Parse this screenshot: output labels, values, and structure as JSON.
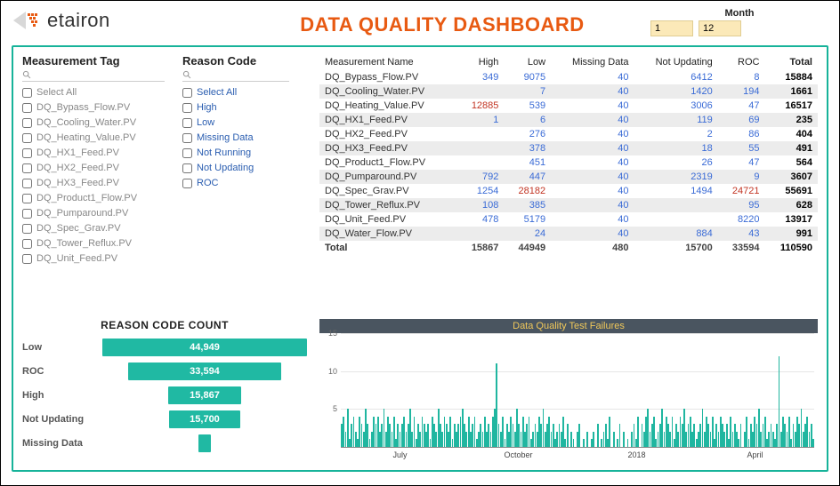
{
  "brand": {
    "name": "etairon"
  },
  "title": "DATA QUALITY DASHBOARD",
  "month": {
    "label": "Month",
    "from": "1",
    "to": "12"
  },
  "colors": {
    "accent": "#e85a12",
    "teal": "#20b9a3",
    "panel_border": "#17b39a",
    "chart_title_bg": "#4a5560",
    "chart_title_fg": "#f0c85a",
    "link": "#2a5db0",
    "blue": "#3a6bd6",
    "red": "#c23422",
    "month_bg": "#fbe9b8"
  },
  "filters": {
    "tag": {
      "heading": "Measurement Tag",
      "items": [
        "Select All",
        "DQ_Bypass_Flow.PV",
        "DQ_Cooling_Water.PV",
        "DQ_Heating_Value.PV",
        "DQ_HX1_Feed.PV",
        "DQ_HX2_Feed.PV",
        "DQ_HX3_Feed.PV",
        "DQ_Product1_Flow.PV",
        "DQ_Pumparound.PV",
        "DQ_Spec_Grav.PV",
        "DQ_Tower_Reflux.PV",
        "DQ_Unit_Feed.PV"
      ]
    },
    "reason": {
      "heading": "Reason Code",
      "items": [
        "Select All",
        "High",
        "Low",
        "Missing Data",
        "Not Running",
        "Not Updating",
        "ROC"
      ]
    }
  },
  "table": {
    "columns": [
      "Measurement Name",
      "High",
      "Low",
      "Missing Data",
      "Not Updating",
      "ROC",
      "Total"
    ],
    "rows": [
      {
        "name": "DQ_Bypass_Flow.PV",
        "high": "349",
        "low": "9075",
        "missing": "40",
        "nu": "6412",
        "roc": "8",
        "total": "15884",
        "cc": [
          "b",
          "b",
          "b",
          "b",
          "b"
        ]
      },
      {
        "name": "DQ_Cooling_Water.PV",
        "high": "",
        "low": "7",
        "missing": "40",
        "nu": "1420",
        "roc": "194",
        "total": "1661",
        "cc": [
          "",
          "b",
          "b",
          "b",
          "b"
        ]
      },
      {
        "name": "DQ_Heating_Value.PV",
        "high": "12885",
        "low": "539",
        "missing": "40",
        "nu": "3006",
        "roc": "47",
        "total": "16517",
        "cc": [
          "r",
          "b",
          "b",
          "b",
          "b"
        ]
      },
      {
        "name": "DQ_HX1_Feed.PV",
        "high": "1",
        "low": "6",
        "missing": "40",
        "nu": "119",
        "roc": "69",
        "total": "235",
        "cc": [
          "b",
          "b",
          "b",
          "b",
          "b"
        ]
      },
      {
        "name": "DQ_HX2_Feed.PV",
        "high": "",
        "low": "276",
        "missing": "40",
        "nu": "2",
        "roc": "86",
        "total": "404",
        "cc": [
          "",
          "b",
          "b",
          "b",
          "b"
        ]
      },
      {
        "name": "DQ_HX3_Feed.PV",
        "high": "",
        "low": "378",
        "missing": "40",
        "nu": "18",
        "roc": "55",
        "total": "491",
        "cc": [
          "",
          "b",
          "b",
          "b",
          "b"
        ]
      },
      {
        "name": "DQ_Product1_Flow.PV",
        "high": "",
        "low": "451",
        "missing": "40",
        "nu": "26",
        "roc": "47",
        "total": "564",
        "cc": [
          "",
          "b",
          "b",
          "b",
          "b"
        ]
      },
      {
        "name": "DQ_Pumparound.PV",
        "high": "792",
        "low": "447",
        "missing": "40",
        "nu": "2319",
        "roc": "9",
        "total": "3607",
        "cc": [
          "b",
          "b",
          "b",
          "b",
          "b"
        ]
      },
      {
        "name": "DQ_Spec_Grav.PV",
        "high": "1254",
        "low": "28182",
        "missing": "40",
        "nu": "1494",
        "roc": "24721",
        "total": "55691",
        "cc": [
          "b",
          "r",
          "b",
          "b",
          "r"
        ]
      },
      {
        "name": "DQ_Tower_Reflux.PV",
        "high": "108",
        "low": "385",
        "missing": "40",
        "nu": "",
        "roc": "95",
        "total": "628",
        "cc": [
          "b",
          "b",
          "b",
          "",
          "b"
        ]
      },
      {
        "name": "DQ_Unit_Feed.PV",
        "high": "478",
        "low": "5179",
        "missing": "40",
        "nu": "",
        "roc": "8220",
        "total": "13917",
        "cc": [
          "b",
          "b",
          "b",
          "",
          "b"
        ]
      },
      {
        "name": "DQ_Water_Flow.PV",
        "high": "",
        "low": "24",
        "missing": "40",
        "nu": "884",
        "roc": "43",
        "total": "991",
        "cc": [
          "",
          "b",
          "b",
          "b",
          "b"
        ]
      },
      {
        "name": "Total",
        "high": "15867",
        "low": "44949",
        "missing": "480",
        "nu": "15700",
        "roc": "33594",
        "total": "110590",
        "cc": [
          "p",
          "p",
          "p",
          "p",
          "p"
        ]
      }
    ]
  },
  "funnel": {
    "title": "REASON CODE COUNT",
    "max": 44949,
    "rows": [
      {
        "label": "Low",
        "value": 44949,
        "text": "44,949"
      },
      {
        "label": "ROC",
        "value": 33594,
        "text": "33,594"
      },
      {
        "label": "High",
        "value": 15867,
        "text": "15,867"
      },
      {
        "label": "Not Updating",
        "value": 15700,
        "text": "15,700"
      },
      {
        "label": "Missing Data",
        "value": 480,
        "text": ""
      }
    ]
  },
  "timeseries": {
    "title": "Data Quality Test Failures",
    "ylim": [
      0,
      15
    ],
    "yticks": [
      5,
      10,
      15
    ],
    "xticks": [
      "July",
      "October",
      "2018",
      "April"
    ],
    "values": [
      3,
      4,
      2,
      5,
      1,
      3,
      4,
      2,
      1,
      4,
      3,
      2,
      5,
      3,
      1,
      2,
      4,
      3,
      4,
      2,
      3,
      5,
      2,
      4,
      3,
      2,
      4,
      1,
      3,
      2,
      3,
      4,
      2,
      3,
      5,
      2,
      4,
      1,
      3,
      2,
      4,
      3,
      2,
      3,
      1,
      4,
      3,
      2,
      5,
      3,
      2,
      4,
      3,
      2,
      4,
      1,
      3,
      2,
      3,
      4,
      5,
      3,
      2,
      4,
      2,
      3,
      4,
      1,
      2,
      3,
      2,
      4,
      2,
      3,
      2,
      4,
      5,
      11,
      3,
      2,
      4,
      1,
      3,
      2,
      4,
      3,
      2,
      5,
      3,
      2,
      4,
      2,
      3,
      4,
      1,
      2,
      3,
      2,
      4,
      3,
      5,
      2,
      3,
      4,
      2,
      3,
      1,
      2,
      3,
      2,
      4,
      1,
      3,
      0,
      2,
      1,
      0,
      2,
      3,
      0,
      1,
      0,
      2,
      0,
      1,
      2,
      0,
      3,
      0,
      1,
      2,
      3,
      1,
      4,
      0,
      2,
      0,
      1,
      3,
      0,
      2,
      0,
      1,
      0,
      2,
      3,
      1,
      4,
      0,
      3,
      2,
      4,
      5,
      2,
      3,
      4,
      1,
      2,
      3,
      5,
      2,
      4,
      3,
      2,
      4,
      1,
      3,
      2,
      4,
      3,
      5,
      2,
      3,
      4,
      2,
      3,
      1,
      2,
      3,
      5,
      2,
      4,
      3,
      2,
      4,
      1,
      3,
      2,
      4,
      3,
      2,
      3,
      1,
      4,
      2,
      3,
      2,
      1,
      3,
      0,
      2,
      4,
      1,
      3,
      2,
      4,
      3,
      5,
      2,
      3,
      4,
      1,
      2,
      3,
      2,
      1,
      3,
      12,
      2,
      4,
      3,
      2,
      4,
      1,
      3,
      2,
      4,
      3,
      5,
      2,
      3,
      4,
      2,
      3,
      1
    ]
  }
}
